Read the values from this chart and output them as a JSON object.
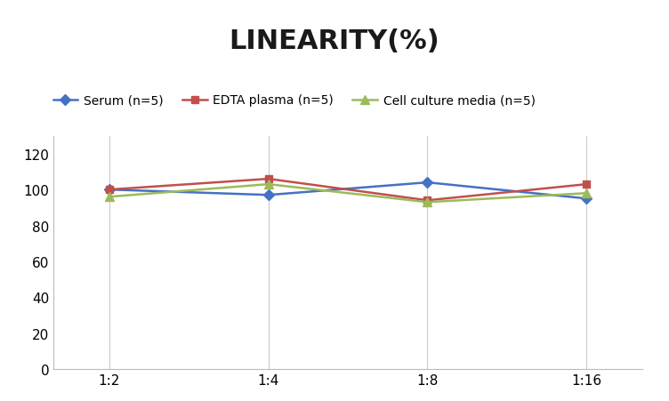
{
  "title": "LINEARITY(%)",
  "x_positions": [
    0,
    1,
    2,
    3
  ],
  "series": [
    {
      "label": "Serum (n=5)",
      "values": [
        100,
        97,
        104,
        95
      ],
      "color": "#4472C4",
      "marker": "D",
      "markersize": 6,
      "linewidth": 1.8
    },
    {
      "label": "EDTA plasma (n=5)",
      "values": [
        100,
        106,
        94,
        103
      ],
      "color": "#C0504D",
      "marker": "s",
      "markersize": 6,
      "linewidth": 1.8
    },
    {
      "label": "Cell culture media (n=5)",
      "values": [
        96,
        103,
        93,
        98
      ],
      "color": "#9BBB59",
      "marker": "^",
      "markersize": 7,
      "linewidth": 1.8
    }
  ],
  "ylim": [
    0,
    130
  ],
  "yticks": [
    0,
    20,
    40,
    60,
    80,
    100,
    120
  ],
  "title_fontsize": 22,
  "title_fontweight": "bold",
  "legend_fontsize": 10,
  "tick_fontsize": 11,
  "background_color": "#ffffff",
  "grid_color": "#cccccc",
  "x_tick_labels": [
    "1:2",
    "1:4",
    "1:8",
    "1:16"
  ]
}
